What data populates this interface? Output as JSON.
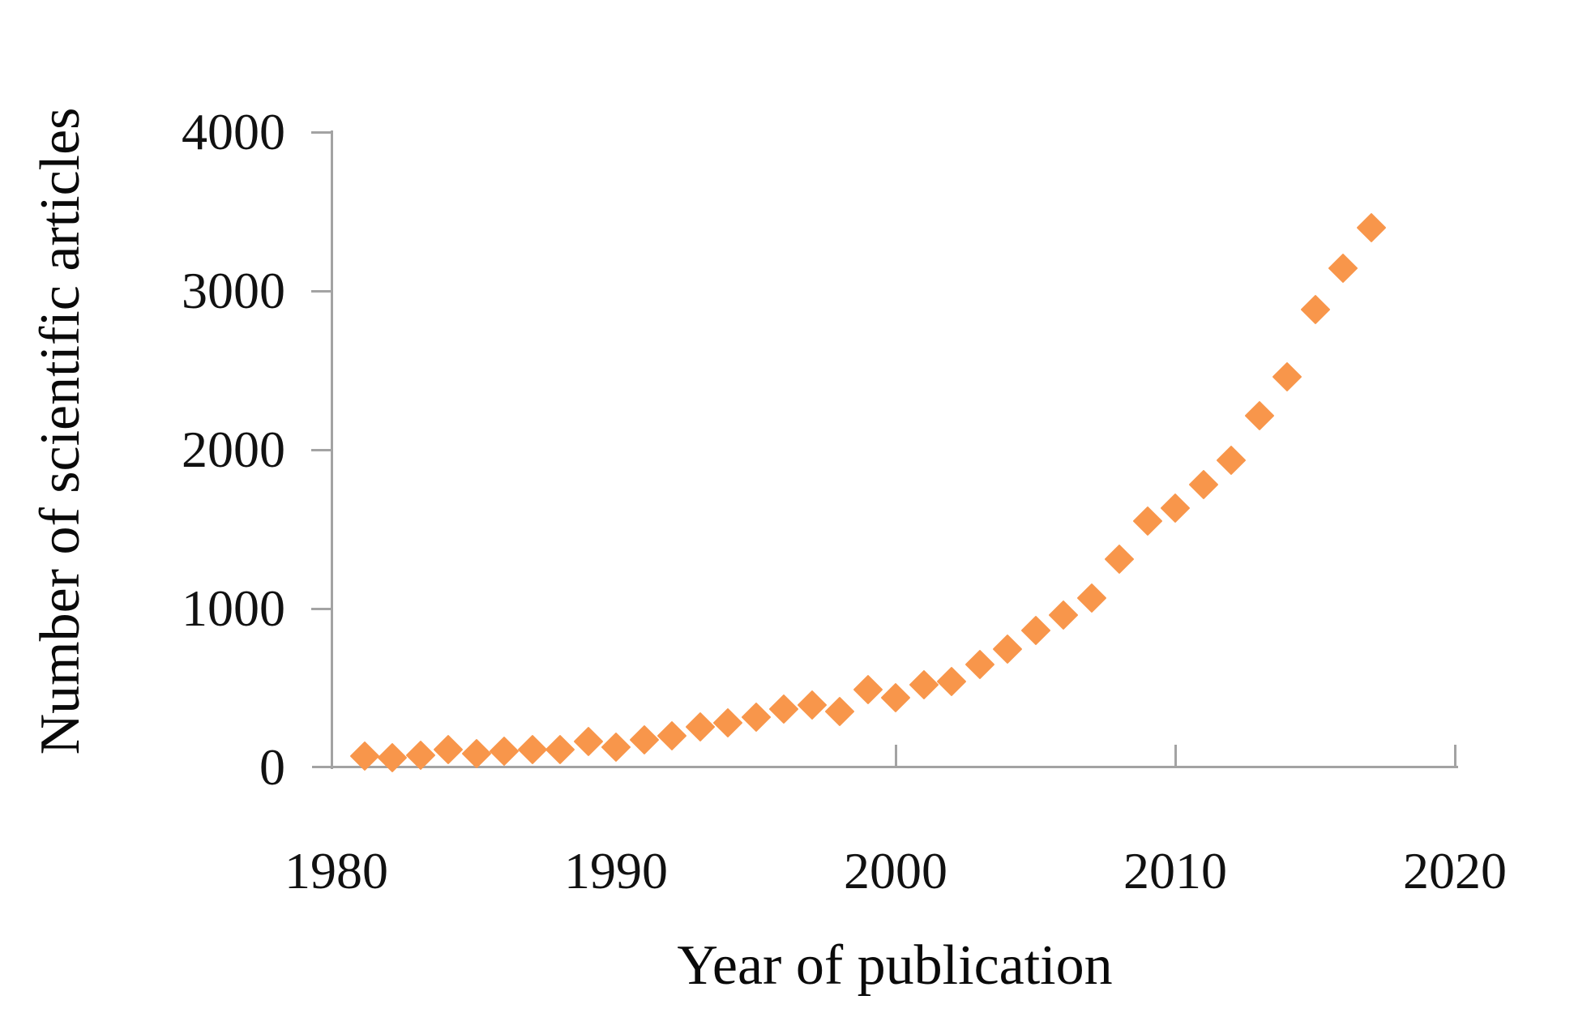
{
  "chart_data": {
    "type": "scatter",
    "title": "",
    "xlabel": "Year of publication",
    "ylabel": "Number of scientific articles",
    "legend_position": "none",
    "grid": false,
    "marker_shape": "diamond",
    "marker_color": "#F8964B",
    "axis_color": "#A3A3A3",
    "text_color": "#111111",
    "xlim": [
      1980,
      2020
    ],
    "ylim": [
      0,
      4000
    ],
    "ytick_values": [
      0,
      1000,
      2000,
      3000,
      4000
    ],
    "ytick_labels": [
      "0",
      "1000",
      "2000",
      "3000",
      "4000"
    ],
    "xtick_values": [
      1980,
      1990,
      2000,
      2010,
      2020
    ],
    "xtick_labels": [
      "1980",
      "1990",
      "2000",
      "2010",
      "2020"
    ],
    "visible_xtick_marks": [
      2000,
      2010,
      2020
    ],
    "x": [
      1981,
      1982,
      1983,
      1984,
      1985,
      1986,
      1987,
      1988,
      1989,
      1990,
      1991,
      1992,
      1993,
      1994,
      1995,
      1996,
      1997,
      1998,
      1999,
      2000,
      2001,
      2002,
      2003,
      2004,
      2005,
      2006,
      2007,
      2008,
      2009,
      2010,
      2011,
      2012,
      2013,
      2014,
      2015,
      2016,
      2017
    ],
    "values": [
      70,
      60,
      78,
      110,
      87,
      100,
      112,
      112,
      163,
      128,
      173,
      199,
      255,
      281,
      316,
      367,
      395,
      352,
      490,
      440,
      520,
      540,
      650,
      745,
      862,
      960,
      1066,
      1310,
      1550,
      1633,
      1780,
      1935,
      2214,
      2460,
      2883,
      3143,
      3400
    ]
  }
}
